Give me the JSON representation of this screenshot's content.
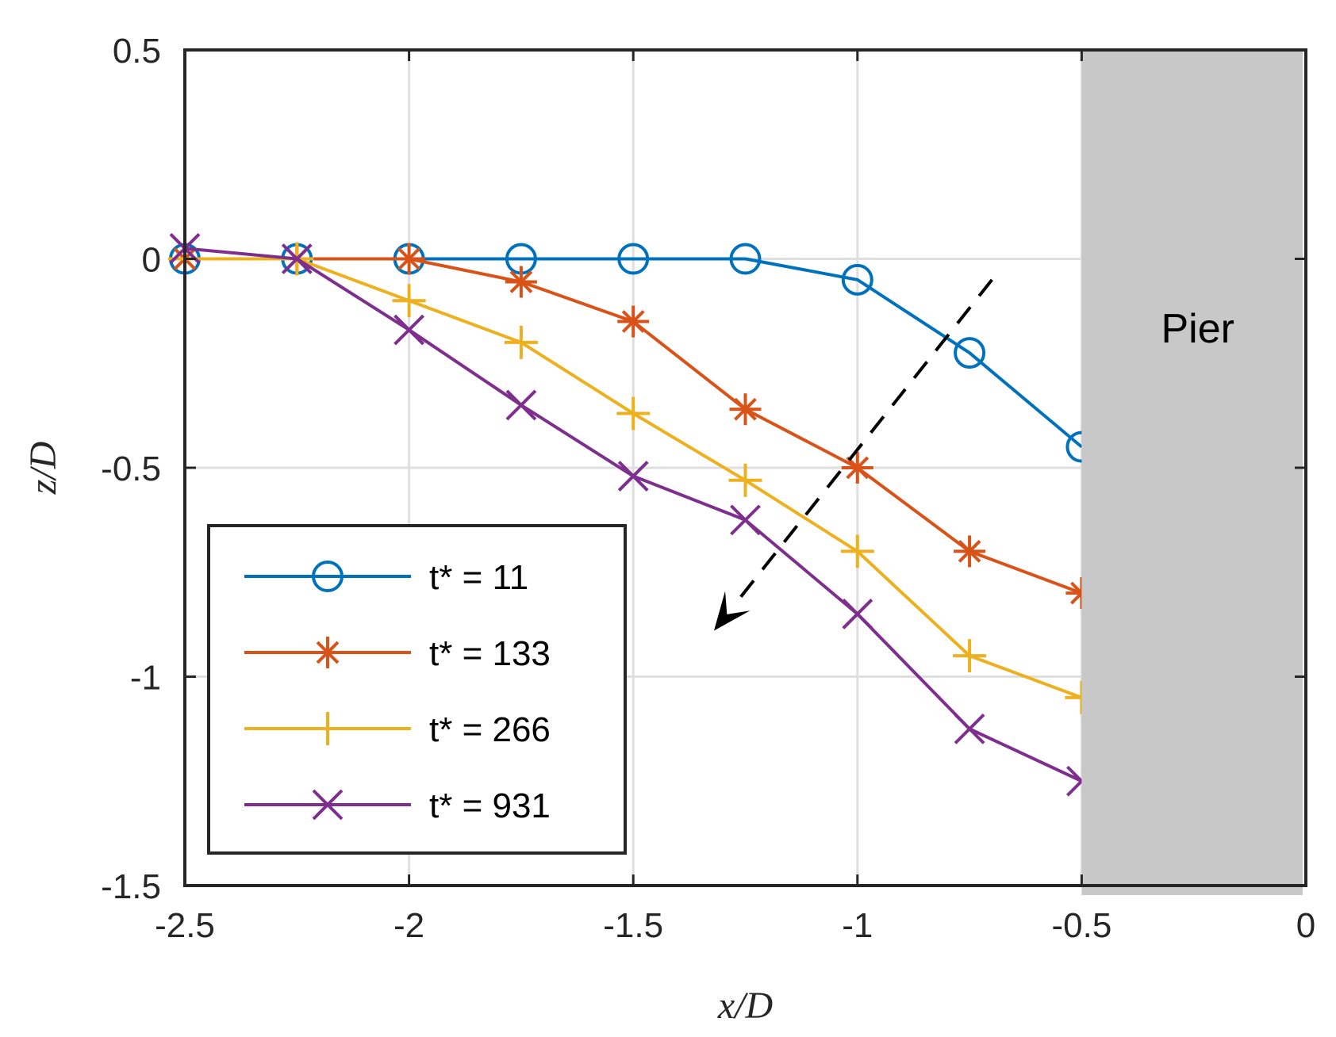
{
  "chart_data": {
    "type": "line",
    "title": "",
    "xlabel": "x/D",
    "ylabel": "z/D",
    "xlim": [
      -2.5,
      0
    ],
    "ylim": [
      -1.5,
      0.5
    ],
    "xticks": [
      "-2.5",
      "-2",
      "-1.5",
      "-1",
      "-0.5",
      "0"
    ],
    "yticks": [
      "0.5",
      "0",
      "-0.5",
      "-1",
      "-1.5"
    ],
    "grid": true,
    "legend_position": "bottom-left",
    "series": [
      {
        "name": "t* = 11",
        "color": "#0072BD",
        "marker": "circle",
        "x": [
          -2.5,
          -2.25,
          -2.0,
          -1.75,
          -1.5,
          -1.25,
          -1.0,
          -0.75,
          -0.5
        ],
        "y": [
          0.0,
          0.0,
          0.0,
          0.0,
          0.0,
          0.0,
          -0.05,
          -0.225,
          -0.45
        ]
      },
      {
        "name": "t* = 133",
        "color": "#D95319",
        "marker": "asterisk",
        "x": [
          -2.5,
          -2.25,
          -2.0,
          -1.75,
          -1.5,
          -1.25,
          -1.0,
          -0.75,
          -0.5
        ],
        "y": [
          0.0,
          0.0,
          0.0,
          -0.055,
          -0.15,
          -0.36,
          -0.5,
          -0.7,
          -0.8
        ]
      },
      {
        "name": "t* = 266",
        "color": "#EDB120",
        "marker": "plus",
        "x": [
          -2.5,
          -2.25,
          -2.0,
          -1.75,
          -1.5,
          -1.25,
          -1.0,
          -0.75,
          -0.5
        ],
        "y": [
          0.0,
          0.0,
          -0.1,
          -0.2,
          -0.37,
          -0.53,
          -0.7,
          -0.95,
          -1.05
        ]
      },
      {
        "name": "t* = 931",
        "color": "#7E2F8E",
        "marker": "x",
        "x": [
          -2.5,
          -2.25,
          -2.0,
          -1.75,
          -1.5,
          -1.25,
          -1.0,
          -0.75,
          -0.5
        ],
        "y": [
          0.025,
          0.0,
          -0.17,
          -0.35,
          -0.52,
          -0.625,
          -0.85,
          -1.125,
          -1.25
        ]
      }
    ],
    "annotations": [
      {
        "type": "region",
        "label": "Pier",
        "x_range": [
          -0.5,
          0
        ],
        "y_range": [
          -1.5,
          0.5
        ],
        "color": "#C8C8C8"
      },
      {
        "type": "dashed-arrow",
        "from": [
          -0.7,
          -0.05
        ],
        "to": [
          -1.32,
          -0.89
        ],
        "color": "#000000"
      }
    ]
  }
}
